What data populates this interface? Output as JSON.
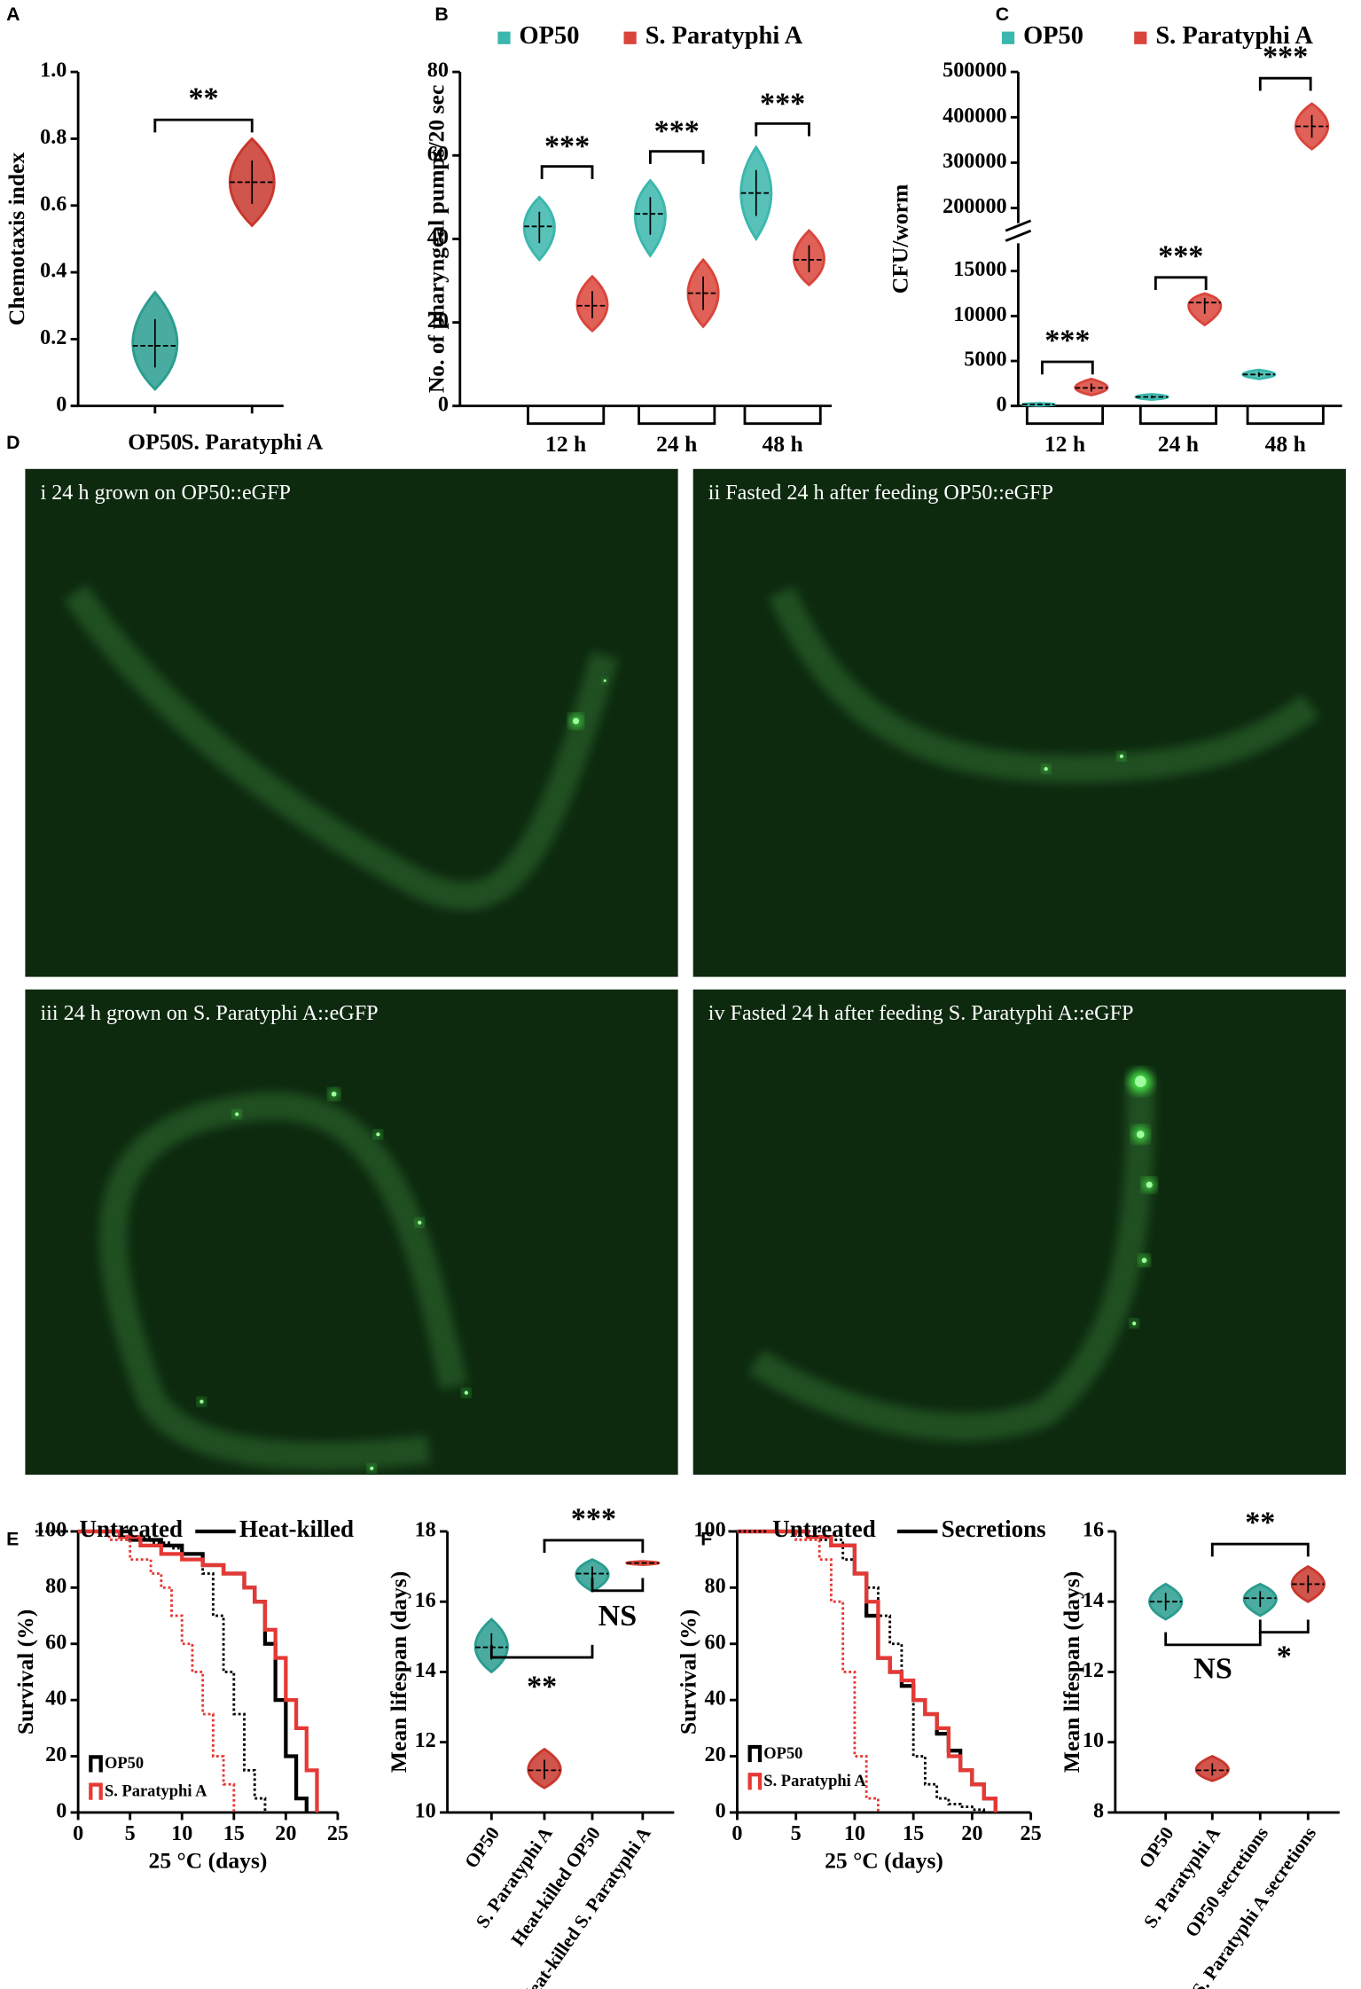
{
  "chart_data": [
    {
      "panel": "A",
      "type": "violin",
      "ylabel": "Chemotaxis index",
      "categories": [
        "OP50",
        "S. Paratyphi A"
      ],
      "colors": [
        "#2a9d8f",
        "#c8372d"
      ],
      "median": [
        0.18,
        0.67
      ],
      "min": [
        0.05,
        0.54
      ],
      "max": [
        0.34,
        0.8
      ],
      "ylim": [
        0,
        1
      ],
      "yticks": [
        0,
        0.2,
        0.4,
        0.6,
        0.8,
        {
          "value": 1,
          "label": "1.0"
        }
      ],
      "annotations": [
        "**"
      ]
    },
    {
      "panel": "B",
      "type": "grouped-violin",
      "ylabel": "No. of pharyngeal pumps/20 sec",
      "categories": [
        "12 h",
        "24 h",
        "48 h"
      ],
      "series": [
        {
          "name": "OP50",
          "color": "#3bb7ad",
          "median": [
            43,
            46,
            51
          ],
          "min": [
            35,
            36,
            40
          ],
          "max": [
            50,
            54,
            62
          ]
        },
        {
          "name": "S. Paratyphi A",
          "color": "#d9453b",
          "median": [
            24,
            27,
            35
          ],
          "min": [
            18,
            19,
            29
          ],
          "max": [
            31,
            35,
            42
          ]
        }
      ],
      "ylim": [
        0,
        80
      ],
      "yticks": [
        0,
        20,
        40,
        60,
        80
      ],
      "annotations": [
        "***",
        "***",
        "***"
      ]
    },
    {
      "panel": "C",
      "type": "broken-violin",
      "ylabel": "CFU/worm",
      "categories": [
        "12 h",
        "24 h",
        "48 h"
      ],
      "series": [
        {
          "name": "OP50",
          "color": "#3bb7ad",
          "median": [
            150,
            1000,
            3500
          ],
          "min": [
            50,
            700,
            3000
          ],
          "max": [
            300,
            1300,
            4000
          ]
        },
        {
          "name": "S. Paratyphi A",
          "color": "#d9453b",
          "median": [
            2000,
            11500,
            380000
          ],
          "min": [
            1200,
            9000,
            330000
          ],
          "max": [
            3000,
            12500,
            430000
          ]
        }
      ],
      "ylim": [
        0,
        15000
      ],
      "yticks": [
        0,
        5000,
        10000,
        15000
      ],
      "ylim_upper": [
        200000,
        500000
      ],
      "yticks_upper": [
        200000,
        300000,
        400000,
        500000
      ],
      "annotations": [
        "***",
        "***",
        "***"
      ]
    },
    {
      "panel": "E",
      "type": "survival",
      "xlabel": "25 °C (days)",
      "ylabel": "Survival (%)",
      "xlim": [
        0,
        25
      ],
      "xticks": [
        0,
        5,
        10,
        15,
        20,
        25
      ],
      "ylim": [
        0,
        100
      ],
      "yticks": [
        0,
        20,
        40,
        60,
        80,
        100
      ],
      "legend_styles": [
        {
          "label": "Untreated",
          "dashed": true
        },
        {
          "label": "Heat-killed",
          "dashed": false
        }
      ],
      "legend_groups": [
        {
          "label": "OP50",
          "color": "#000000"
        },
        {
          "label": "S. Paratyphi A",
          "color": "#e53935"
        }
      ],
      "series": [
        {
          "color": "#000000",
          "dashed": true,
          "x": [
            0,
            4,
            7,
            9,
            10,
            12,
            13,
            14,
            15,
            16,
            17,
            18
          ],
          "y": [
            100,
            98,
            96,
            94,
            90,
            85,
            70,
            50,
            35,
            15,
            5,
            0
          ]
        },
        {
          "color": "#000000",
          "dashed": false,
          "x": [
            0,
            5,
            8,
            10,
            12,
            14,
            16,
            17,
            18,
            19,
            20,
            21,
            22
          ],
          "y": [
            100,
            97,
            95,
            92,
            88,
            85,
            80,
            75,
            60,
            40,
            20,
            5,
            0
          ]
        },
        {
          "color": "#e53935",
          "dashed": true,
          "x": [
            0,
            3,
            5,
            7,
            8,
            9,
            10,
            11,
            12,
            13,
            14,
            15
          ],
          "y": [
            100,
            97,
            90,
            85,
            80,
            70,
            60,
            50,
            35,
            20,
            10,
            0
          ]
        },
        {
          "color": "#e53935",
          "dashed": false,
          "x": [
            0,
            4,
            6,
            8,
            10,
            12,
            14,
            16,
            17,
            18,
            19,
            20,
            21,
            22,
            23
          ],
          "y": [
            100,
            98,
            95,
            92,
            90,
            88,
            85,
            80,
            75,
            65,
            55,
            40,
            30,
            15,
            0
          ]
        }
      ]
    },
    {
      "type": "violin",
      "ylabel": "Mean lifespan (days)",
      "categories": [
        "OP50",
        "S. Paratyphi A",
        "Heat-killed OP50",
        "Heat-killed S. Paratyphi A"
      ],
      "colors": [
        "#2a9d8f",
        "#c8372d",
        "#2a9d8f",
        "#d9453b"
      ],
      "median": [
        14.7,
        11.2,
        16.8,
        17.1
      ],
      "min": [
        14,
        10.7,
        16.3,
        17.05
      ],
      "max": [
        15.5,
        11.8,
        17.2,
        17.15
      ],
      "ylim": [
        10,
        18
      ],
      "yticks": [
        10,
        12,
        14,
        16,
        18
      ],
      "annotations": [
        "***",
        "NS",
        "**"
      ]
    },
    {
      "panel": "F",
      "type": "survival",
      "xlabel": "25 °C (days)",
      "ylabel": "Survival (%)",
      "xlim": [
        0,
        25
      ],
      "xticks": [
        0,
        5,
        10,
        15,
        20,
        25
      ],
      "ylim": [
        0,
        100
      ],
      "yticks": [
        0,
        20,
        40,
        60,
        80,
        100
      ],
      "legend_styles": [
        {
          "label": "Untreated",
          "dashed": true
        },
        {
          "label": "Secretions",
          "dashed": false
        }
      ],
      "legend_groups": [
        {
          "label": "OP50",
          "color": "#000000"
        },
        {
          "label": "S. Paratyphi A",
          "color": "#e53935"
        }
      ],
      "series": [
        {
          "color": "#000000",
          "dashed": true,
          "x": [
            0,
            7,
            9,
            10,
            11,
            12,
            13,
            14,
            15,
            16,
            17,
            18,
            19,
            20,
            21
          ],
          "y": [
            100,
            97,
            90,
            85,
            80,
            70,
            60,
            45,
            20,
            10,
            5,
            3,
            2,
            1,
            0
          ]
        },
        {
          "color": "#000000",
          "dashed": false,
          "x": [
            0,
            6,
            8,
            10,
            11,
            12,
            13,
            14,
            15,
            16,
            17,
            18,
            19,
            20,
            21,
            22
          ],
          "y": [
            100,
            98,
            95,
            85,
            70,
            55,
            50,
            45,
            40,
            35,
            28,
            22,
            15,
            10,
            5,
            0
          ]
        },
        {
          "color": "#e53935",
          "dashed": true,
          "x": [
            0,
            5,
            7,
            8,
            9,
            10,
            11,
            12
          ],
          "y": [
            100,
            97,
            90,
            75,
            50,
            20,
            5,
            0
          ]
        },
        {
          "color": "#e53935",
          "dashed": false,
          "x": [
            0,
            6,
            8,
            10,
            11,
            12,
            13,
            14,
            15,
            16,
            17,
            18,
            19,
            20,
            21,
            22
          ],
          "y": [
            100,
            98,
            95,
            85,
            75,
            55,
            50,
            47,
            40,
            35,
            30,
            20,
            15,
            10,
            5,
            0
          ]
        }
      ]
    },
    {
      "type": "violin",
      "ylabel": "Mean lifespan (days)",
      "categories": [
        "OP50",
        "S. Paratyphi A",
        "OP50 secretions",
        "S. Paratyphi A secretions"
      ],
      "colors": [
        "#2a9d8f",
        "#c8372d",
        "#2a9d8f",
        "#c8372d"
      ],
      "median": [
        14,
        9.2,
        14.1,
        14.5
      ],
      "min": [
        13.5,
        8.9,
        13.6,
        14
      ],
      "max": [
        14.5,
        9.6,
        14.5,
        15
      ],
      "ylim": [
        8,
        16
      ],
      "yticks": [
        8,
        10,
        12,
        14,
        16
      ],
      "annotations": [
        "**",
        "*",
        "NS"
      ]
    }
  ],
  "micrographs": {
    "panel": "D",
    "images": [
      {
        "label": "i  24 h grown on OP50::eGFP"
      },
      {
        "label": "ii  Fasted 24 h after feeding  OP50::eGFP"
      },
      {
        "label": "iii  24 h grown on S. Paratyphi A::eGFP"
      },
      {
        "label": "iv  Fasted 24 h after feeding  S. Paratyphi A::eGFP"
      }
    ]
  }
}
